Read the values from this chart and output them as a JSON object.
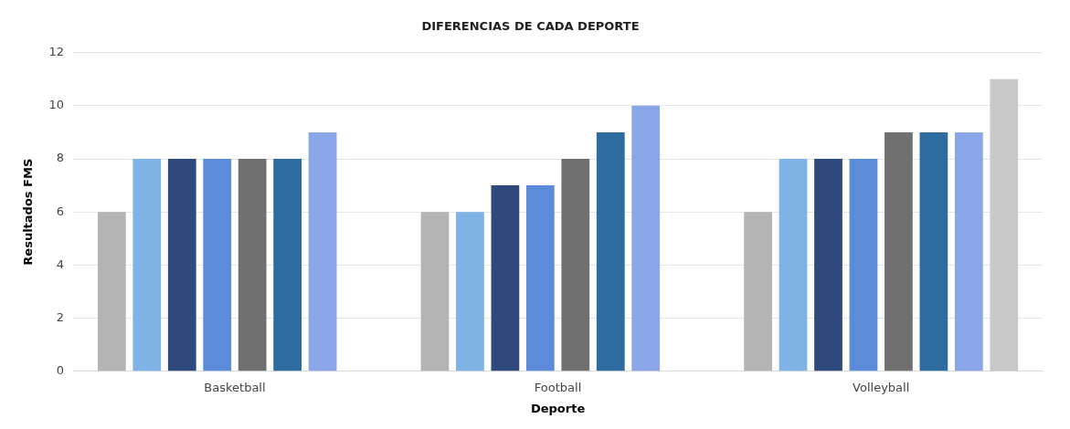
{
  "chart_data": {
    "type": "bar",
    "title": "DIFERENCIAS DE CADA DEPORTE",
    "xlabel": "Deporte",
    "ylabel": "Resultados FMS",
    "categories": [
      "Basketball",
      "Football",
      "Volleyball"
    ],
    "series": [
      {
        "color": "#b4b4b4",
        "values": [
          6,
          6,
          6
        ]
      },
      {
        "color": "#7fb2e5",
        "values": [
          8,
          6,
          8
        ]
      },
      {
        "color": "#2e4a7d",
        "values": [
          8,
          7,
          8
        ]
      },
      {
        "color": "#5b8bd9",
        "values": [
          8,
          7,
          8
        ]
      },
      {
        "color": "#707070",
        "values": [
          8,
          8,
          9
        ]
      },
      {
        "color": "#2e6b9e",
        "values": [
          8,
          9,
          9
        ]
      },
      {
        "color": "#8aa6e8",
        "values": [
          9,
          10,
          9
        ]
      },
      {
        "color": "#c8c8c8",
        "values": [
          null,
          null,
          11
        ]
      }
    ],
    "ylim": [
      0,
      12
    ],
    "yticks": [
      0,
      2,
      4,
      6,
      8,
      10,
      12
    ],
    "grid": "y",
    "legend": false
  }
}
